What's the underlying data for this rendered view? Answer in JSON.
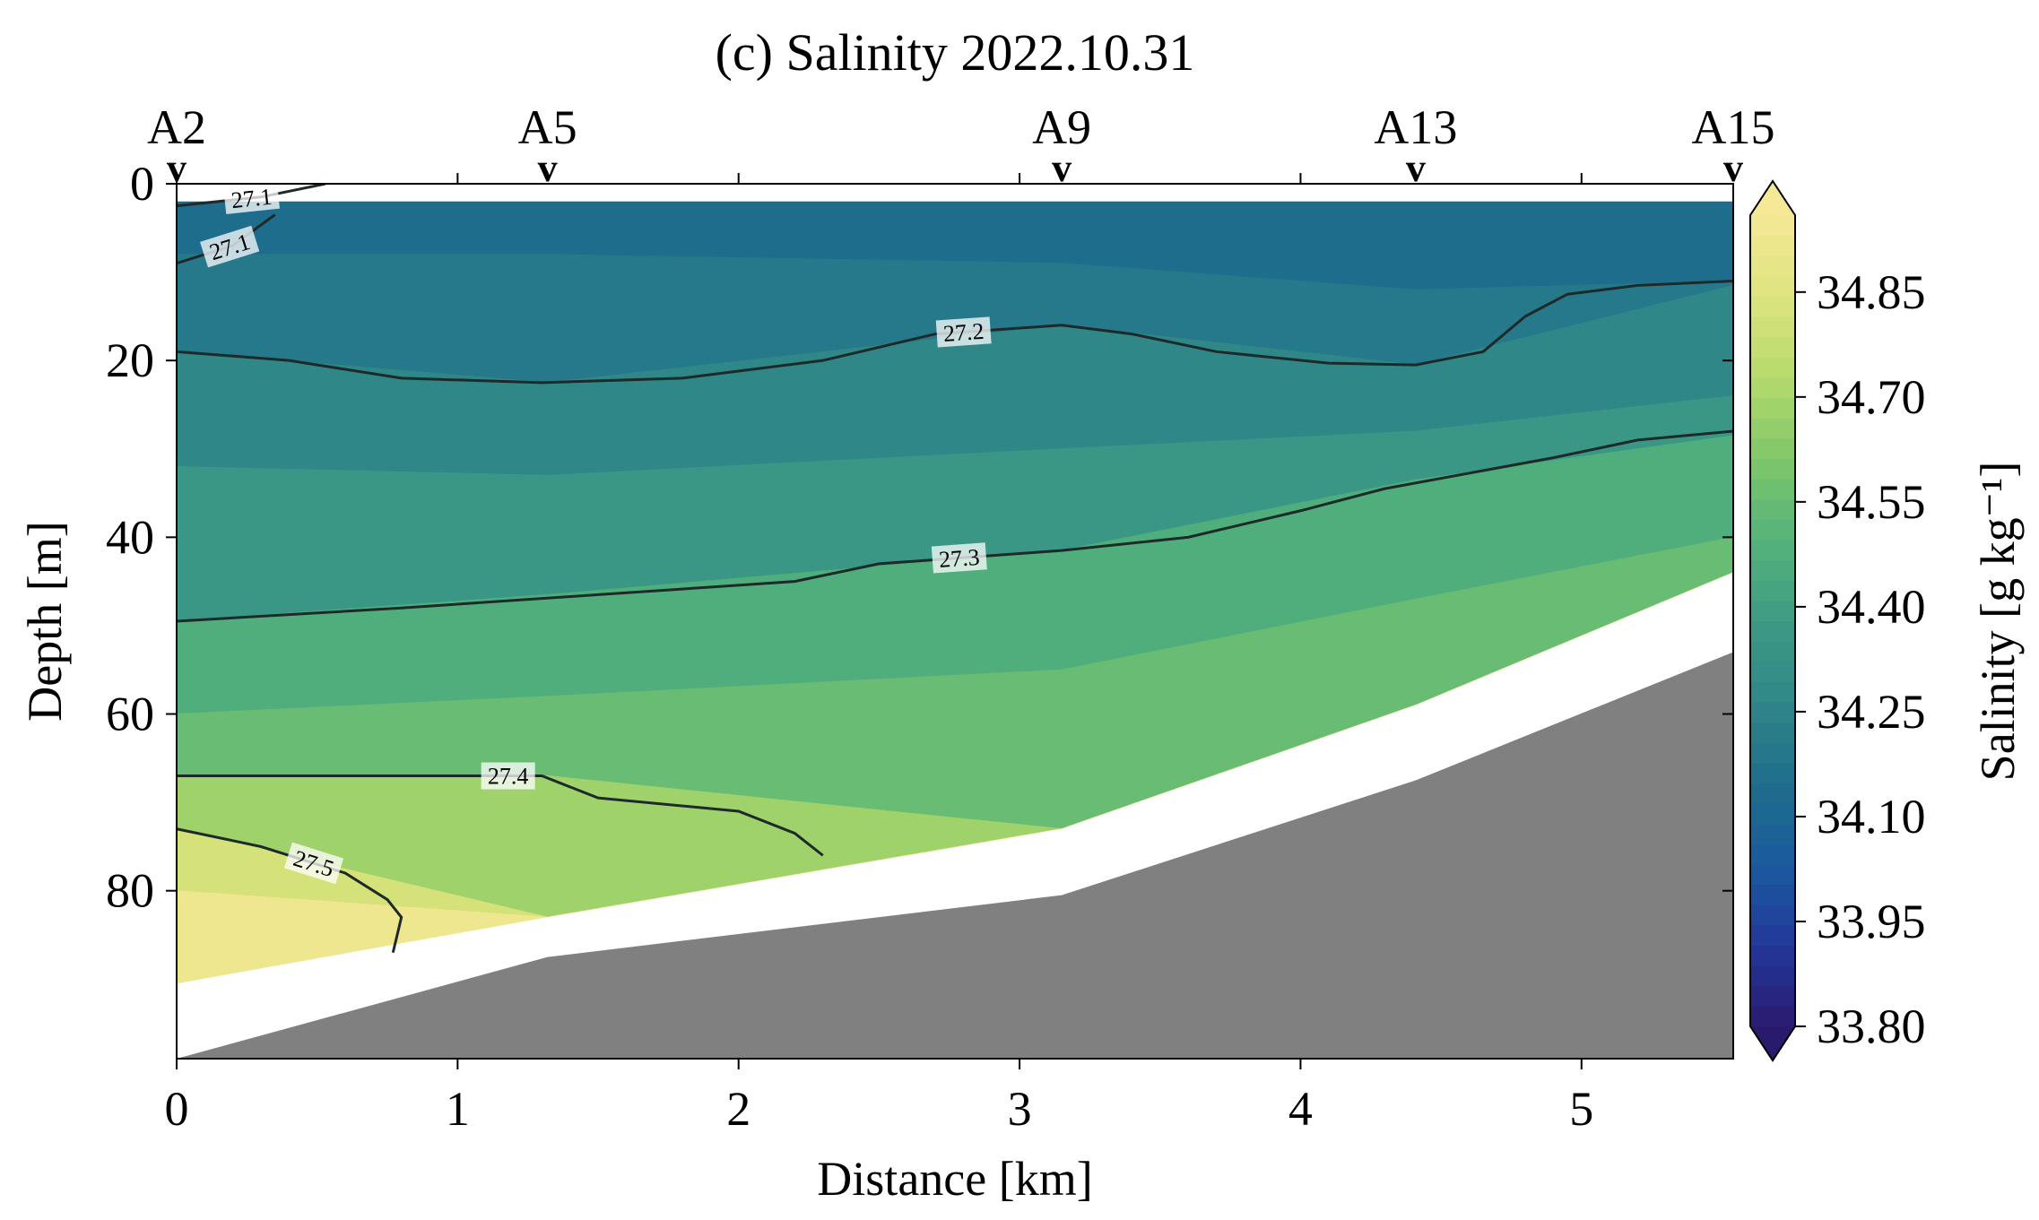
{
  "chart_data": {
    "type": "contour",
    "title": "(c) Salinity 2022.10.31",
    "xlabel": "Distance [km]",
    "ylabel": "Depth [m]",
    "xlim": [
      0,
      5.54
    ],
    "ylim": [
      99,
      0
    ],
    "x_ticks": [
      {
        "value": 0,
        "label": "0"
      },
      {
        "value": 1,
        "label": "1"
      },
      {
        "value": 2,
        "label": "2"
      },
      {
        "value": 3,
        "label": "3"
      },
      {
        "value": 4,
        "label": "4"
      },
      {
        "value": 5,
        "label": "5"
      }
    ],
    "y_ticks": [
      {
        "value": 0,
        "label": "0"
      },
      {
        "value": 20,
        "label": "20"
      },
      {
        "value": 40,
        "label": "40"
      },
      {
        "value": 60,
        "label": "60"
      },
      {
        "value": 80,
        "label": "80"
      }
    ],
    "stations": [
      {
        "name": "A2",
        "distance": 0.0,
        "marker": "v"
      },
      {
        "name": "A5",
        "distance": 1.32,
        "marker": "v"
      },
      {
        "name": "A9",
        "distance": 3.15,
        "marker": "v"
      },
      {
        "name": "A13",
        "distance": 4.41,
        "marker": "v"
      },
      {
        "name": "A15",
        "distance": 5.54,
        "marker": "v"
      }
    ],
    "colorbar": {
      "label": "Salinity [g kg⁻¹]",
      "min": 33.8,
      "max": 34.96,
      "extend": "both",
      "tick_values": [
        33.8,
        33.95,
        34.1,
        34.25,
        34.4,
        34.55,
        34.7,
        34.85
      ],
      "tick_labels": [
        "33.80",
        "33.95",
        "34.10",
        "34.25",
        "34.40",
        "34.55",
        "34.70",
        "34.85"
      ],
      "colors": [
        "#2a1a6e",
        "#22389a",
        "#1a5a9e",
        "#1f6e8c",
        "#2f8688",
        "#3e9b84",
        "#54b37a",
        "#7fc66a",
        "#b5da6c",
        "#dde47e",
        "#f5e896"
      ]
    },
    "bathymetry": {
      "color": "#808080",
      "distance": [
        0,
        1.32,
        3.15,
        4.41,
        5.54
      ],
      "depth": [
        99,
        87.5,
        80.5,
        67.5,
        53
      ]
    },
    "data_bottom": {
      "distance": [
        0,
        1.32,
        3.15,
        4.41,
        5.54
      ],
      "depth": [
        90.5,
        83,
        73,
        59,
        44
      ]
    },
    "surface_gap_depth": 2,
    "salinity_bands": [
      {
        "salinity": 34.14,
        "depth_top": [
          2,
          2,
          2,
          2,
          2
        ],
        "depth_bottom": [
          8,
          8,
          9,
          12,
          11
        ]
      },
      {
        "salinity": 34.2,
        "depth_top": [
          8,
          8,
          9,
          12,
          11
        ],
        "depth_bottom": [
          19,
          22.5,
          16,
          20.5,
          11.5
        ]
      },
      {
        "salinity": 34.27,
        "depth_top": [
          19,
          22.5,
          16,
          20.5,
          11.5
        ],
        "depth_bottom": [
          32,
          33,
          30,
          28,
          24
        ]
      },
      {
        "salinity": 34.36,
        "depth_top": [
          32,
          33,
          30,
          28,
          24
        ],
        "depth_bottom": [
          49.5,
          46.5,
          41.5,
          33.5,
          28.5
        ]
      },
      {
        "salinity": 34.47,
        "depth_top": [
          49.5,
          46.5,
          41.5,
          33.5,
          28.5
        ],
        "depth_bottom": [
          60,
          58,
          55,
          47,
          40
        ]
      },
      {
        "salinity": 34.55,
        "depth_top": [
          60,
          58,
          55,
          47,
          40
        ],
        "depth_bottom": [
          67,
          67,
          73,
          59,
          44
        ]
      },
      {
        "salinity": 34.68,
        "depth_top": [
          67,
          67,
          73,
          59,
          44
        ],
        "depth_bottom": [
          73,
          83,
          73,
          59,
          44
        ]
      },
      {
        "salinity": 34.82,
        "depth_top": [
          73,
          83,
          73,
          59,
          44
        ],
        "depth_bottom": [
          80,
          83,
          73,
          59,
          44
        ]
      },
      {
        "salinity": 34.93,
        "depth_top": [
          80,
          83,
          73,
          59,
          44
        ],
        "depth_bottom": [
          90.5,
          83,
          73,
          59,
          44
        ]
      }
    ],
    "density_contours": [
      {
        "label": "27.1",
        "points": [
          [
            0,
            2.5
          ],
          [
            0.3,
            1.5
          ],
          [
            0.53,
            0
          ]
        ]
      },
      {
        "label": "27.1",
        "points": [
          [
            0,
            9
          ],
          [
            0.2,
            7
          ],
          [
            0.35,
            3.5
          ]
        ]
      },
      {
        "label": "27.2",
        "points": [
          [
            0,
            19
          ],
          [
            0.4,
            20
          ],
          [
            0.8,
            22
          ],
          [
            1.3,
            22.5
          ],
          [
            1.8,
            22
          ],
          [
            2.3,
            20
          ],
          [
            2.7,
            17
          ],
          [
            3.15,
            16
          ],
          [
            3.4,
            17
          ],
          [
            3.7,
            19
          ],
          [
            4.1,
            20.3
          ],
          [
            4.41,
            20.5
          ],
          [
            4.65,
            19
          ],
          [
            4.8,
            15
          ],
          [
            4.95,
            12.5
          ],
          [
            5.2,
            11.5
          ],
          [
            5.54,
            11
          ]
        ]
      },
      {
        "label": "27.3",
        "points": [
          [
            0,
            49.5
          ],
          [
            0.8,
            48
          ],
          [
            1.5,
            46.5
          ],
          [
            2.2,
            45
          ],
          [
            2.5,
            43
          ],
          [
            3.15,
            41.5
          ],
          [
            3.6,
            40
          ],
          [
            4.0,
            37
          ],
          [
            4.3,
            34.5
          ],
          [
            4.9,
            31
          ],
          [
            5.2,
            29
          ],
          [
            5.54,
            28
          ]
        ]
      },
      {
        "label": "27.4",
        "points": [
          [
            0,
            67
          ],
          [
            0.8,
            67
          ],
          [
            1.3,
            67
          ],
          [
            1.5,
            69.5
          ],
          [
            2.0,
            71
          ],
          [
            2.2,
            73.5
          ],
          [
            2.3,
            76
          ]
        ]
      },
      {
        "label": "27.5",
        "points": [
          [
            0,
            73
          ],
          [
            0.3,
            75
          ],
          [
            0.6,
            78
          ],
          [
            0.75,
            81
          ],
          [
            0.8,
            83
          ],
          [
            0.77,
            87
          ]
        ]
      }
    ]
  }
}
